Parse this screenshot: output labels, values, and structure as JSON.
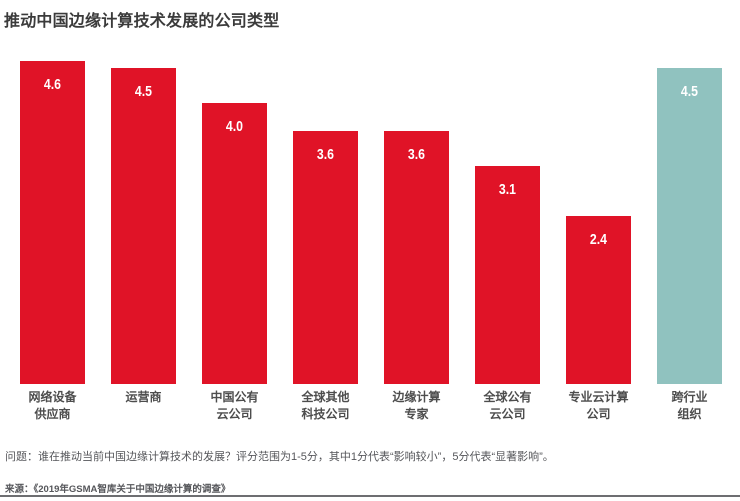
{
  "footnote": "问题：谁在推动当前中国边缘计算技术的发展？评分范围为1-5分，其中1分代表“影响较小”，5分代表“显著影响”。",
  "source": "来源：《2019年GSMA智库关于中国边缘计算的调查》",
  "chart_data": {
    "type": "bar",
    "title": "推动中国边缘计算技术发展的公司类型",
    "categories": [
      [
        "网络设备",
        "供应商"
      ],
      [
        "运营商"
      ],
      [
        "中国公有",
        "云公司"
      ],
      [
        "全球其他",
        "科技公司"
      ],
      [
        "边缘计算",
        "专家"
      ],
      [
        "全球公有",
        "云公司"
      ],
      [
        "专业云计算",
        "公司"
      ],
      [
        "跨行业",
        "组织"
      ]
    ],
    "values": [
      4.6,
      4.5,
      4.0,
      3.6,
      3.6,
      3.1,
      2.4,
      4.5
    ],
    "display_values": [
      "4.6",
      "4.5",
      "4.0",
      "3.6",
      "3.6",
      "3.1",
      "2.4",
      "4.5"
    ],
    "highlight_index": 7,
    "bar_color": "#e01327",
    "highlight_color": "#90c2bf",
    "value_label_color": "#ffffff",
    "ylim": [
      0,
      5
    ],
    "grid": false,
    "legend": false,
    "xlabel": "",
    "ylabel": ""
  }
}
